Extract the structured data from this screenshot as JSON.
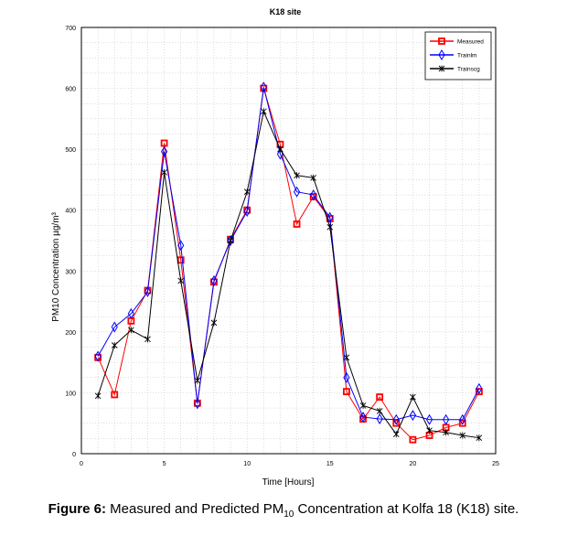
{
  "chart_data": {
    "type": "line",
    "title": "K18 site",
    "xlabel": "Time [Hours]",
    "ylabel": "PM10 Concentration µg/m³",
    "xlim": [
      0,
      25
    ],
    "ylim": [
      0,
      700
    ],
    "xticks": [
      0,
      5,
      10,
      15,
      20,
      25
    ],
    "yticks": [
      0,
      100,
      200,
      300,
      400,
      500,
      600,
      700
    ],
    "grid": true,
    "legend_position": "top-right",
    "x": [
      1,
      2,
      3,
      4,
      5,
      6,
      7,
      8,
      9,
      10,
      11,
      12,
      13,
      14,
      15,
      16,
      17,
      18,
      19,
      20,
      21,
      22,
      23,
      24
    ],
    "series": [
      {
        "name": "Measured",
        "color": "#ff0000",
        "marker": "square",
        "values": [
          158,
          97,
          218,
          268,
          510,
          318,
          83,
          282,
          352,
          400,
          600,
          508,
          377,
          422,
          386,
          102,
          57,
          93,
          50,
          23,
          30,
          43,
          50,
          102
        ]
      },
      {
        "name": "Trainlm",
        "color": "#0000ff",
        "marker": "diamond",
        "values": [
          160,
          208,
          230,
          266,
          496,
          342,
          82,
          284,
          350,
          398,
          602,
          492,
          430,
          425,
          388,
          125,
          60,
          57,
          56,
          63,
          56,
          56,
          56,
          107
        ]
      },
      {
        "name": "Trainscg",
        "color": "#000000",
        "marker": "star",
        "values": [
          95,
          178,
          203,
          188,
          462,
          284,
          120,
          215,
          350,
          430,
          562,
          500,
          457,
          453,
          372,
          158,
          79,
          70,
          32,
          93,
          38,
          35,
          30,
          26
        ]
      }
    ]
  },
  "caption": {
    "label": "Figure 6:",
    "text_before": " Measured and Predicted PM",
    "subscript": "10",
    "text_after": " Concentration at Kolfa 18 (K18) site."
  }
}
